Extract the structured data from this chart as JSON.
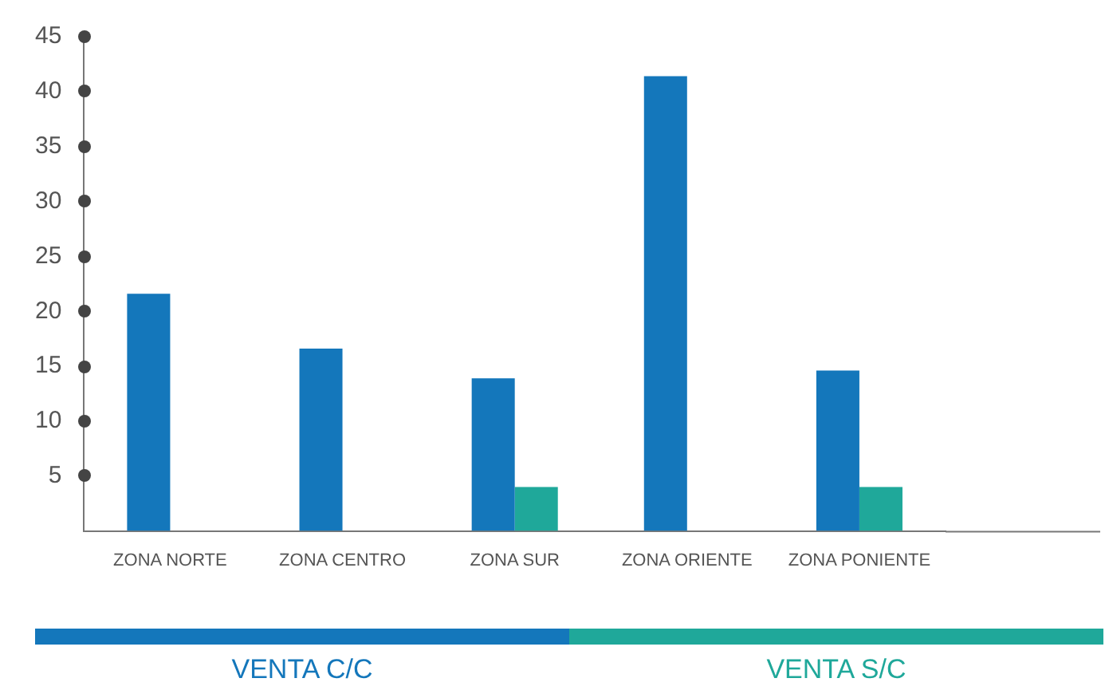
{
  "chart_data": {
    "type": "bar",
    "categories": [
      "ZONA NORTE",
      "ZONA CENTRO",
      "ZONA SUR",
      "ZONA ORIENTE",
      "ZONA PONIENTE"
    ],
    "series": [
      {
        "name": "VENTA C/C",
        "color": "#1477bb",
        "values": [
          21.6,
          16.6,
          13.9,
          41.4,
          14.6
        ]
      },
      {
        "name": "VENTA S/C",
        "color": "#1fa89a",
        "values": [
          null,
          null,
          4,
          null,
          4
        ]
      }
    ],
    "ylim": [
      0,
      45
    ],
    "yticks": [
      5,
      10,
      15,
      20,
      25,
      30,
      35,
      40,
      45
    ],
    "grid": false,
    "legend": "bottom"
  }
}
